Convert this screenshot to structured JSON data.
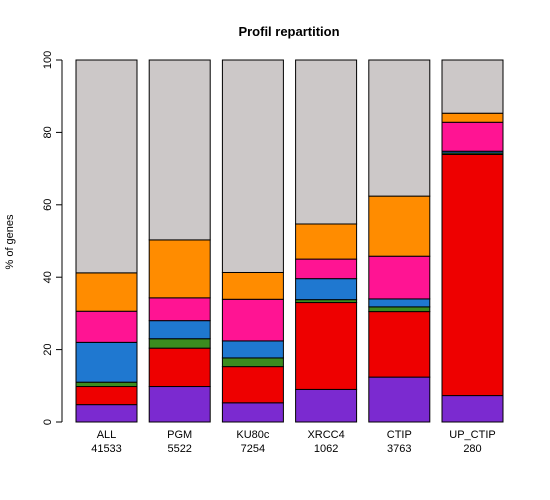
{
  "chart_data": {
    "type": "bar",
    "stacked": true,
    "title": "Profil repartition",
    "xlabel": "",
    "ylabel": "% of genes",
    "ylim": [
      0,
      100
    ],
    "yticks": [
      "0",
      "20",
      "40",
      "60",
      "80",
      "100"
    ],
    "grid": false,
    "categories": [
      "ALL",
      "PGM",
      "KU80c",
      "XRCC4",
      "CTIP",
      "UP_CTIP"
    ],
    "category_counts": [
      "41533",
      "5522",
      "7254",
      "1062",
      "3763",
      "280"
    ],
    "series": [
      {
        "color": "#7b2ad0",
        "values": [
          4.8,
          9.8,
          5.3,
          9.0,
          12.4,
          7.3
        ]
      },
      {
        "color": "#ee0000",
        "values": [
          5.0,
          10.6,
          10.0,
          24.0,
          18.1,
          66.6
        ]
      },
      {
        "color": "#3b8c1f",
        "values": [
          1.2,
          2.6,
          2.4,
          0.8,
          1.3,
          0.4
        ]
      },
      {
        "color": "#1f78d0",
        "values": [
          11.0,
          5.0,
          4.7,
          5.8,
          2.2,
          0.5
        ]
      },
      {
        "color": "#ff1493",
        "values": [
          8.6,
          6.3,
          11.5,
          5.4,
          11.8,
          8.0
        ]
      },
      {
        "color": "#ff8c00",
        "values": [
          10.6,
          16.0,
          7.4,
          9.7,
          16.6,
          2.5
        ]
      },
      {
        "color": "#ccc8c8",
        "values": [
          58.8,
          49.7,
          58.7,
          45.3,
          37.6,
          14.7
        ]
      }
    ]
  }
}
